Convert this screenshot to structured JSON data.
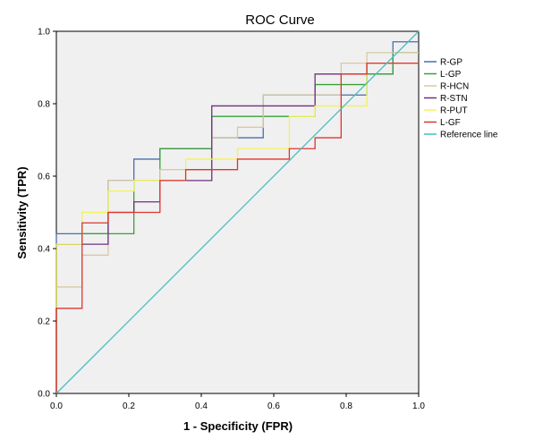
{
  "chart_data": {
    "type": "line",
    "title": "ROC Curve",
    "xlabel": "1 - Specificity (FPR)",
    "ylabel": "Sensitivity (TPR)",
    "xlim": [
      0,
      1
    ],
    "ylim": [
      0,
      1
    ],
    "xticks": [
      "0.0",
      "0.2",
      "0.4",
      "0.6",
      "0.8",
      "1.0"
    ],
    "yticks": [
      "0.0",
      "0.2",
      "0.4",
      "0.6",
      "0.8",
      "1.0"
    ],
    "grid": false,
    "legend_position": "right",
    "series": [
      {
        "name": "R-GP",
        "color": "#4a6ea9",
        "x": [
          0,
          0,
          0.143,
          0.143,
          0.214,
          0.214,
          0.286,
          0.286,
          0.429,
          0.429,
          0.5,
          0.5,
          0.571,
          0.571,
          0.714,
          0.714,
          0.857,
          0.857,
          0.929,
          0.929,
          1
        ],
        "y": [
          0,
          0.441,
          0.441,
          0.588,
          0.588,
          0.647,
          0.647,
          0.676,
          0.676,
          0.706,
          0.706,
          0.706,
          0.706,
          0.824,
          0.824,
          0.824,
          0.824,
          0.882,
          0.882,
          0.971,
          0.971
        ]
      },
      {
        "name": "L-GP",
        "color": "#3aa03a",
        "x": [
          0,
          0,
          0.071,
          0.071,
          0.214,
          0.214,
          0.286,
          0.286,
          0.429,
          0.429,
          0.714,
          0.714,
          0.857,
          0.857,
          0.929,
          0.929,
          1
        ],
        "y": [
          0,
          0.412,
          0.412,
          0.441,
          0.441,
          0.588,
          0.588,
          0.676,
          0.676,
          0.765,
          0.765,
          0.853,
          0.853,
          0.882,
          0.882,
          0.941,
          0.941
        ]
      },
      {
        "name": "R-HCN",
        "color": "#d8c9a4",
        "x": [
          0,
          0,
          0.071,
          0.071,
          0.143,
          0.143,
          0.286,
          0.286,
          0.429,
          0.429,
          0.5,
          0.5,
          0.571,
          0.571,
          0.786,
          0.786,
          0.857,
          0.857,
          1
        ],
        "y": [
          0,
          0.294,
          0.294,
          0.382,
          0.382,
          0.588,
          0.588,
          0.618,
          0.618,
          0.706,
          0.706,
          0.735,
          0.735,
          0.824,
          0.824,
          0.912,
          0.912,
          0.941,
          0.941
        ]
      },
      {
        "name": "R-STN",
        "color": "#6f2f80",
        "x": [
          0,
          0,
          0.071,
          0.071,
          0.143,
          0.143,
          0.214,
          0.214,
          0.286,
          0.286,
          0.429,
          0.429,
          0.714,
          0.714,
          0.857,
          0.857,
          1
        ],
        "y": [
          0,
          0.412,
          0.412,
          0.412,
          0.412,
          0.5,
          0.5,
          0.529,
          0.529,
          0.588,
          0.588,
          0.794,
          0.794,
          0.882,
          0.882,
          0.912,
          0.912
        ]
      },
      {
        "name": "R-PUT",
        "color": "#f2f25a",
        "x": [
          0,
          0,
          0.071,
          0.071,
          0.143,
          0.143,
          0.214,
          0.214,
          0.357,
          0.357,
          0.5,
          0.5,
          0.643,
          0.643,
          0.714,
          0.714,
          0.857,
          0.857,
          1
        ],
        "y": [
          0,
          0.412,
          0.412,
          0.5,
          0.5,
          0.559,
          0.559,
          0.588,
          0.588,
          0.647,
          0.647,
          0.676,
          0.676,
          0.765,
          0.765,
          0.794,
          0.794,
          0.912,
          0.912
        ]
      },
      {
        "name": "L-GF",
        "color": "#e0352f",
        "x": [
          0,
          0,
          0.071,
          0.071,
          0.143,
          0.143,
          0.286,
          0.286,
          0.357,
          0.357,
          0.5,
          0.5,
          0.643,
          0.643,
          0.714,
          0.714,
          0.786,
          0.786,
          0.857,
          0.857,
          1
        ],
        "y": [
          0,
          0.235,
          0.235,
          0.471,
          0.471,
          0.5,
          0.5,
          0.588,
          0.588,
          0.618,
          0.618,
          0.647,
          0.647,
          0.676,
          0.676,
          0.706,
          0.706,
          0.882,
          0.882,
          0.912,
          0.912
        ]
      },
      {
        "name": "Reference line",
        "color": "#43bfc7",
        "x": [
          0,
          1
        ],
        "y": [
          0,
          1
        ]
      }
    ]
  }
}
